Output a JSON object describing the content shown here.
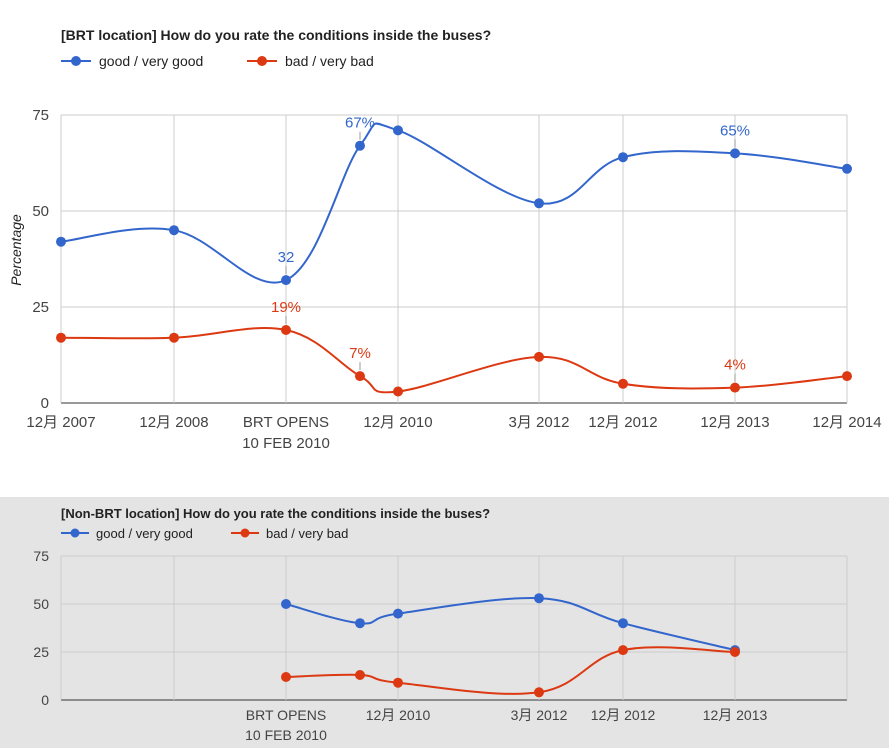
{
  "chart_data": [
    {
      "type": "line",
      "title": "[BRT location] How do you rate the conditions inside the buses?",
      "ylabel": "Percentage",
      "ylim": [
        0,
        75
      ],
      "yticks": [
        0,
        25,
        50,
        75
      ],
      "grid": true,
      "legend_position": "top-left",
      "x": [
        {
          "label": "12月 2007"
        },
        {
          "label": "12月 2008"
        },
        {
          "label": "BRT OPENS",
          "label2": "10 FEB 2010"
        },
        {
          "label": "12月 2010"
        },
        {
          "label": "3月 2012"
        },
        {
          "label": "12月 2012"
        },
        {
          "label": "12月 2013"
        },
        {
          "label": "12月 2014"
        }
      ],
      "extra_x": [
        {
          "label": "",
          "label2": ""
        }
      ],
      "series": [
        {
          "name": "good / very good",
          "color": "#3366cc",
          "points": [
            {
              "x": "12月 2007",
              "y": 42
            },
            {
              "x": "12月 2008",
              "y": 45
            },
            {
              "x": "BRT OPENS",
              "y": 32,
              "annotation": "32"
            },
            {
              "x": "12月 2010 (early)",
              "y": 67,
              "annotation": "67%"
            },
            {
              "x": "12月 2010",
              "y": 71
            },
            {
              "x": "3月 2012",
              "y": 52
            },
            {
              "x": "12月 2012",
              "y": 64
            },
            {
              "x": "12月 2013",
              "y": 65,
              "annotation": "65%"
            },
            {
              "x": "12月 2014",
              "y": 61
            }
          ]
        },
        {
          "name": "bad / very bad",
          "color": "#dc3912",
          "points": [
            {
              "x": "12月 2007",
              "y": 17
            },
            {
              "x": "12月 2008",
              "y": 17
            },
            {
              "x": "BRT OPENS",
              "y": 19,
              "annotation": "19%"
            },
            {
              "x": "12月 2010 (early)",
              "y": 7,
              "annotation": "7%"
            },
            {
              "x": "12月 2010",
              "y": 3
            },
            {
              "x": "3月 2012",
              "y": 12
            },
            {
              "x": "12月 2012",
              "y": 5
            },
            {
              "x": "12月 2013",
              "y": 4,
              "annotation": "4%"
            },
            {
              "x": "12月 2014",
              "y": 7
            }
          ]
        }
      ]
    },
    {
      "type": "line",
      "title": "[Non-BRT location] How do you rate the conditions inside the buses?",
      "ylim": [
        0,
        75
      ],
      "yticks": [
        0,
        25,
        50,
        75
      ],
      "grid": true,
      "legend_position": "top-left",
      "x": [
        {
          "label": ""
        },
        {
          "label": ""
        },
        {
          "label": "BRT OPENS",
          "label2": "10 FEB 2010"
        },
        {
          "label": "12月 2010"
        },
        {
          "label": "3月 2012"
        },
        {
          "label": "12月 2012"
        },
        {
          "label": "12月 2013"
        },
        {
          "label": ""
        }
      ],
      "series": [
        {
          "name": "good / very good",
          "color": "#3366cc",
          "points": [
            {
              "x": "BRT OPENS",
              "y": 50
            },
            {
              "x": "12月 2010 (early)",
              "y": 40
            },
            {
              "x": "12月 2010",
              "y": 45
            },
            {
              "x": "3月 2012",
              "y": 53
            },
            {
              "x": "12月 2012",
              "y": 40
            },
            {
              "x": "12月 2013",
              "y": 26
            }
          ]
        },
        {
          "name": "bad / very bad",
          "color": "#dc3912",
          "points": [
            {
              "x": "BRT OPENS",
              "y": 12
            },
            {
              "x": "12月 2010 (early)",
              "y": 13
            },
            {
              "x": "12月 2010",
              "y": 9
            },
            {
              "x": "3月 2012",
              "y": 4
            },
            {
              "x": "12月 2012",
              "y": 26
            },
            {
              "x": "12月 2013",
              "y": 25
            }
          ]
        }
      ]
    }
  ]
}
